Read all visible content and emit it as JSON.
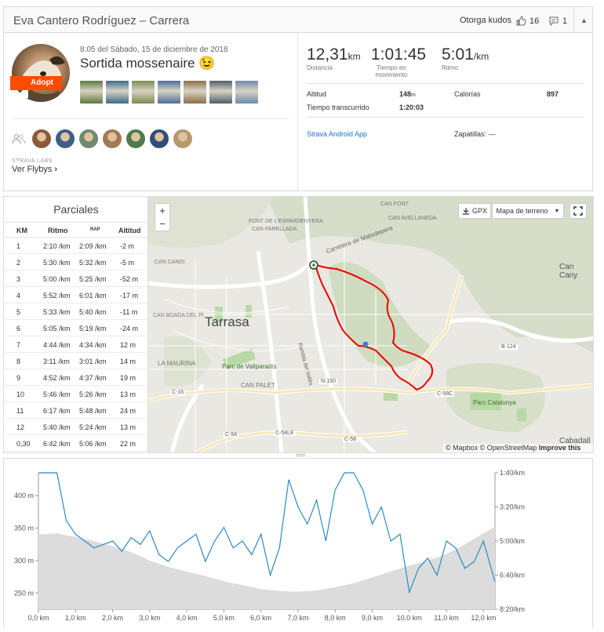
{
  "header": {
    "title": "Eva Cantero Rodríguez – Carrera",
    "kudos_label": "Otorga kudos",
    "kudos_count": "16",
    "comment_count": "1"
  },
  "summary": {
    "date": "8:05 del Sábado, 15 de diciembre de 2018",
    "activity_name": "Sortida mossenaire 😉",
    "adopt_badge": "Adopt",
    "labs_label": "STRAVA LABS",
    "flyby_link": "Ver Flybys",
    "photo_colors": [
      "#5b7a3c",
      "#3d6a8a",
      "#7d8c4f",
      "#4b6e99",
      "#8a6e46",
      "#4f5e6b",
      "#6c8bb0"
    ],
    "athlete_colors": [
      "#8a5a3b",
      "#3d5e88",
      "#6e8a70",
      "#a47a55",
      "#4f7a4e",
      "#2d4f7a",
      "#b59a6e"
    ]
  },
  "stats": {
    "distance_value": "12,31",
    "distance_unit": "km",
    "distance_label": "Distancia",
    "moving_time_value": "1:01:45",
    "moving_time_label": "Tiempo en movimiento",
    "pace_value": "5:01",
    "pace_unit": "/km",
    "pace_label": "Ritmo",
    "elevation_label": "Altitud",
    "elevation_value": "148",
    "elevation_unit": "m",
    "calories_label": "Calorías",
    "calories_value": "897",
    "elapsed_label": "Tiempo transcurrido",
    "elapsed_value": "1:20:03",
    "device_link": "Strava Android App",
    "shoes_label": "Zapatillas:",
    "shoes_value": "—"
  },
  "splits": {
    "title": "Parciales",
    "headers": {
      "km": "KM",
      "pace": "Ritmo",
      "gap": "RAP",
      "elev": "Altitud"
    },
    "rows": [
      {
        "km": "1",
        "pace": "2:10 /km",
        "gap": "2:09 /km",
        "elev": "-2 m"
      },
      {
        "km": "2",
        "pace": "5:30 /km",
        "gap": "5:32 /km",
        "elev": "-5 m"
      },
      {
        "km": "3",
        "pace": "5:00 /km",
        "gap": "5:25 /km",
        "elev": "-52 m"
      },
      {
        "km": "4",
        "pace": "5:52 /km",
        "gap": "6:01 /km",
        "elev": "-17 m"
      },
      {
        "km": "5",
        "pace": "5:33 /km",
        "gap": "5:40 /km",
        "elev": "-11 m"
      },
      {
        "km": "6",
        "pace": "5:05 /km",
        "gap": "5:19 /km",
        "elev": "-24 m"
      },
      {
        "km": "7",
        "pace": "4:44 /km",
        "gap": "4:34 /km",
        "elev": "12 m"
      },
      {
        "km": "8",
        "pace": "3:11 /km",
        "gap": "3:01 /km",
        "elev": "14 m"
      },
      {
        "km": "9",
        "pace": "4:52 /km",
        "gap": "4:37 /km",
        "elev": "19 m"
      },
      {
        "km": "10",
        "pace": "5:46 /km",
        "gap": "5:26 /km",
        "elev": "13 m"
      },
      {
        "km": "11",
        "pace": "6:17 /km",
        "gap": "5:48 /km",
        "elev": "24 m"
      },
      {
        "km": "12",
        "pace": "5:40 /km",
        "gap": "5:24 /km",
        "elev": "13 m"
      },
      {
        "km": "0,30",
        "pace": "6:42 /km",
        "gap": "5:06 /km",
        "elev": "22 m"
      }
    ]
  },
  "map": {
    "gpx_button": "GPX",
    "map_type_select": "Mapa de terreno",
    "zoom_in": "+",
    "zoom_out": "−",
    "attribution": "© Mapbox © OpenStreetMap",
    "improve_link": "Improve this map",
    "labels": {
      "city": "Tarrasa",
      "can_parellada": "CAN PARELLADA",
      "font_espardenyera": "FONT DE L'ESPARDENYERA",
      "can_font": "CAN FONT",
      "can_avellaneda": "CAN AVELLANEDA",
      "can_candi": "CAN CANDI",
      "can_boada": "CAN BOADA DEL PI",
      "la_maurina": "LA MAURINA",
      "parc_vallparadis": "Parc de Vallparadís",
      "can_palet": "CAN PALET",
      "parc_catalunya": "Parc Catalunya",
      "can_cany": "Can Cany",
      "cabadall": "Cabadall",
      "carretera": "Carretera de Matadepera",
      "rambla": "Rambla del Vallès",
      "n150": "N-150",
      "c58": "C-58",
      "c58c": "C-58C",
      "c58le": "C-58LE",
      "c16": "C-16",
      "b124": "B-124"
    }
  },
  "chart_data": {
    "type": "area",
    "x_unit": "km",
    "x_ticks": [
      "0,0 km",
      "1,0 km",
      "2,0 km",
      "3,0 km",
      "4,0 km",
      "5,0 km",
      "6,0 km",
      "7,0 km",
      "8,0 km",
      "9,0 km",
      "10,0 km",
      "11,0 km",
      "12,0 km"
    ],
    "y_left_ticks": [
      "400 m",
      "350 m",
      "300 m",
      "250 m"
    ],
    "y_right_ticks": [
      "1:40/km",
      "3:20/km",
      "5:00/km",
      "6:40/km",
      "8:20/km"
    ],
    "xlim": [
      0,
      12.31
    ],
    "ylim_elevation": [
      225,
      435
    ],
    "series": [
      {
        "kind": "elevation",
        "x": [
          0,
          0.5,
          1,
          1.5,
          2,
          2.5,
          3,
          3.5,
          4,
          4.5,
          5,
          5.5,
          6,
          6.5,
          7,
          7.5,
          8,
          8.5,
          9,
          9.5,
          10,
          10.5,
          11,
          11.5,
          12,
          12.31
        ],
        "values": [
          340,
          342,
          336,
          330,
          322,
          313,
          300,
          290,
          283,
          276,
          268,
          262,
          256,
          253,
          252,
          254,
          259,
          265,
          274,
          283,
          292,
          300,
          310,
          325,
          342,
          352
        ]
      },
      {
        "kind": "pace",
        "x": [
          0,
          0.25,
          0.5,
          0.75,
          1,
          1.25,
          1.5,
          1.75,
          2,
          2.25,
          2.5,
          2.75,
          3,
          3.25,
          3.5,
          3.75,
          4,
          4.25,
          4.5,
          4.75,
          5,
          5.25,
          5.5,
          5.75,
          6,
          6.25,
          6.5,
          6.75,
          7,
          7.25,
          7.5,
          7.75,
          8,
          8.25,
          8.5,
          8.75,
          9,
          9.25,
          9.5,
          9.75,
          10,
          10.25,
          10.5,
          10.75,
          11,
          11.25,
          11.5,
          11.75,
          12,
          12.31
        ],
        "values_sec_per_km": [
          60,
          62,
          75,
          240,
          280,
          300,
          320,
          310,
          300,
          330,
          290,
          310,
          270,
          340,
          360,
          320,
          300,
          280,
          360,
          300,
          260,
          320,
          300,
          340,
          280,
          400,
          320,
          120,
          200,
          250,
          180,
          300,
          150,
          80,
          70,
          150,
          250,
          200,
          300,
          280,
          450,
          380,
          350,
          400,
          300,
          320,
          380,
          360,
          300,
          420
        ]
      }
    ]
  }
}
